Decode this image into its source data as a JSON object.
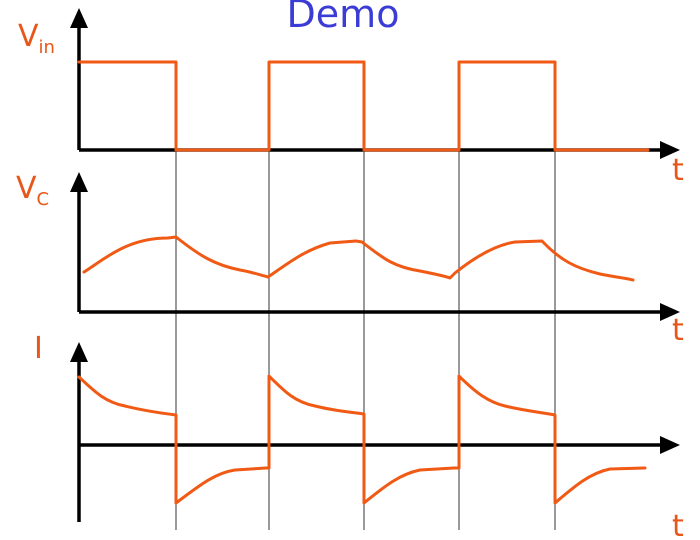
{
  "title": "Demo",
  "panels": {
    "vin": {
      "label_main": "V",
      "label_sub": "in",
      "x_label": "t"
    },
    "vc": {
      "label_main": "V",
      "label_sub": "C",
      "x_label": "t"
    },
    "i": {
      "label_main": "I",
      "x_label": "t"
    }
  },
  "colors": {
    "waveform": "#f05a14",
    "axes": "#000000",
    "title": "#3b3bd6",
    "labels": "#e8571a"
  },
  "icons": [
    "up-arrowhead",
    "right-arrowhead"
  ]
}
